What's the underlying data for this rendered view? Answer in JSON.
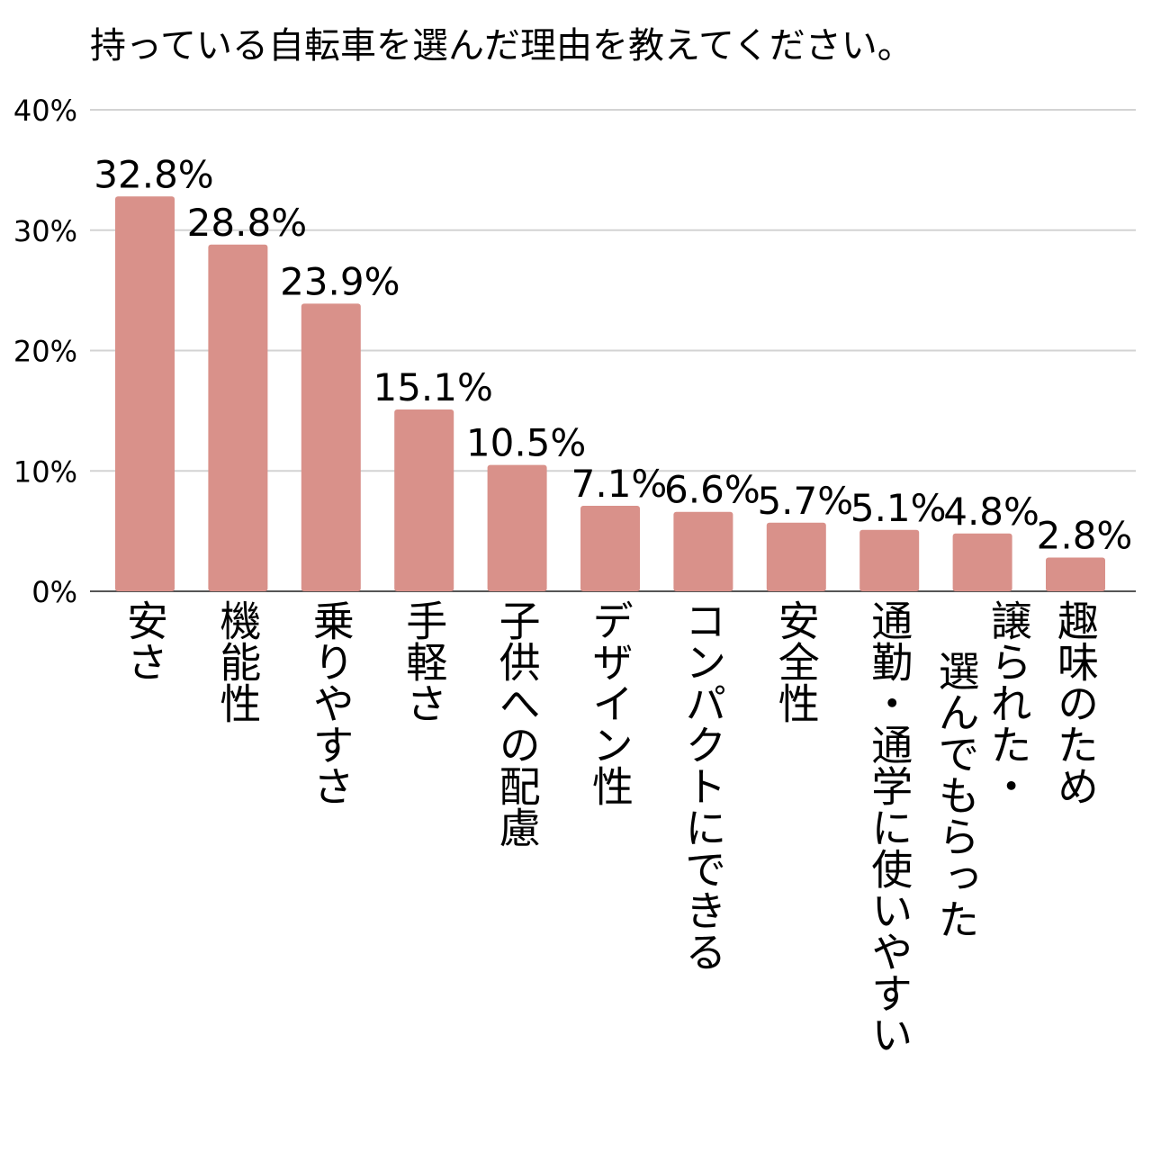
{
  "chart_data": {
    "type": "bar",
    "title": "持っている自転車を選んだ理由を教えてください。",
    "xlabel": "",
    "ylabel": "",
    "ylim": [
      0,
      40
    ],
    "yticks": [
      "0%",
      "10%",
      "20%",
      "30%",
      "40%"
    ],
    "grid": true,
    "legend": "none",
    "bar_color": "#d9918a",
    "categories": [
      "安さ",
      "機能性",
      "乗りやすさ",
      "手軽さ",
      "子供への配慮",
      "デザイン性",
      "コンパクトにできる",
      "安全性",
      "通勤・通学に使いやすい",
      "譲られた・選んでもらった",
      "趣味のため"
    ],
    "category_columns": [
      [
        "安さ"
      ],
      [
        "機能性"
      ],
      [
        "乗りやすさ"
      ],
      [
        "手軽さ"
      ],
      [
        "子供への配慮"
      ],
      [
        "デザイン性"
      ],
      [
        "コンパクトにできる"
      ],
      [
        "安全性"
      ],
      [
        "通勤・通学に使いやすい"
      ],
      [
        "譲られた・",
        "選んでもらった"
      ],
      [
        "趣味のため"
      ]
    ],
    "values": [
      32.8,
      28.8,
      23.9,
      15.1,
      10.5,
      7.1,
      6.6,
      5.7,
      5.1,
      4.8,
      2.8
    ],
    "value_labels": [
      "32.8%",
      "28.8%",
      "23.9%",
      "15.1%",
      "10.5%",
      "7.1%",
      "6.6%",
      "5.7%",
      "5.1%",
      "4.8%",
      "2.8%"
    ]
  }
}
